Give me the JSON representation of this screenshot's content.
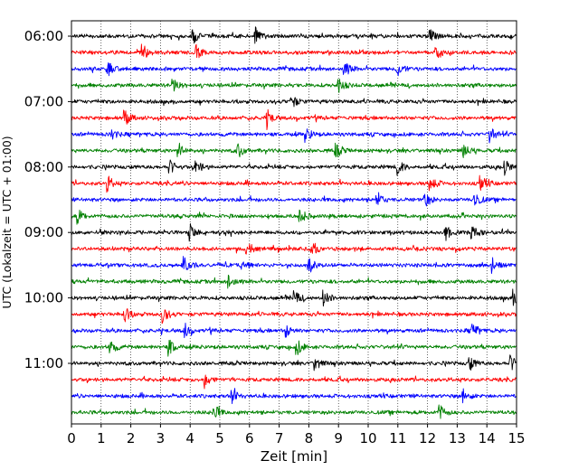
{
  "chart_data": {
    "type": "line",
    "title": "",
    "xlabel": "Zeit  [min]",
    "ylabel": "UTC (Lokalzeit = UTC + 01:00)",
    "xlim": [
      0,
      15
    ],
    "x_ticks": [
      "0",
      "1",
      "2",
      "3",
      "4",
      "5",
      "6",
      "7",
      "8",
      "9",
      "10",
      "11",
      "12",
      "13",
      "14",
      "15"
    ],
    "x_grid": "dotted",
    "y_ticks": [
      {
        "label": "06:00",
        "row": 0
      },
      {
        "label": "07:00",
        "row": 4
      },
      {
        "label": "08:00",
        "row": 8
      },
      {
        "label": "09:00",
        "row": 12
      },
      {
        "label": "10:00",
        "row": 16
      },
      {
        "label": "11:00",
        "row": 20
      }
    ],
    "trace_colors": [
      "#000000",
      "#ff0000",
      "#0000ff",
      "#008000"
    ],
    "traces": [
      {
        "start": "06:00",
        "color": "#000000",
        "events_min": [
          4.1,
          6.2,
          12.1
        ]
      },
      {
        "start": "06:15",
        "color": "#ff0000",
        "events_min": [
          2.4,
          4.2,
          12.3
        ]
      },
      {
        "start": "06:30",
        "color": "#0000ff",
        "events_min": [
          1.2,
          9.2,
          11.0
        ]
      },
      {
        "start": "06:45",
        "color": "#008000",
        "events_min": [
          3.4,
          9.0
        ]
      },
      {
        "start": "07:00",
        "color": "#000000",
        "events_min": [
          7.4
        ]
      },
      {
        "start": "07:15",
        "color": "#ff0000",
        "events_min": [
          1.8,
          6.6
        ]
      },
      {
        "start": "07:30",
        "color": "#0000ff",
        "events_min": [
          1.3,
          7.9,
          14.1
        ]
      },
      {
        "start": "07:45",
        "color": "#008000",
        "events_min": [
          3.6,
          5.6,
          8.9,
          13.2
        ]
      },
      {
        "start": "08:00",
        "color": "#000000",
        "events_min": [
          3.3,
          4.2,
          11.0,
          14.6
        ]
      },
      {
        "start": "08:15",
        "color": "#ff0000",
        "events_min": [
          1.2,
          12.1,
          13.8
        ]
      },
      {
        "start": "08:30",
        "color": "#0000ff",
        "events_min": [
          10.3,
          11.9,
          13.6
        ]
      },
      {
        "start": "08:45",
        "color": "#008000",
        "events_min": [
          0.2,
          7.7
        ]
      },
      {
        "start": "09:00",
        "color": "#000000",
        "events_min": [
          4.0,
          12.6,
          13.5
        ]
      },
      {
        "start": "09:15",
        "color": "#ff0000",
        "events_min": [
          5.9,
          8.1
        ]
      },
      {
        "start": "09:30",
        "color": "#0000ff",
        "events_min": [
          3.8,
          5.7,
          8.0,
          14.2
        ]
      },
      {
        "start": "09:45",
        "color": "#008000",
        "events_min": [
          5.3
        ]
      },
      {
        "start": "10:00",
        "color": "#000000",
        "events_min": [
          7.5,
          8.5,
          14.9
        ]
      },
      {
        "start": "10:15",
        "color": "#ff0000",
        "events_min": [
          1.8,
          3.1
        ]
      },
      {
        "start": "10:30",
        "color": "#0000ff",
        "events_min": [
          3.8,
          7.2,
          13.5
        ]
      },
      {
        "start": "10:45",
        "color": "#008000",
        "events_min": [
          1.3,
          3.3,
          7.6
        ]
      },
      {
        "start": "11:00",
        "color": "#000000",
        "events_min": [
          8.2,
          13.4,
          14.8
        ]
      },
      {
        "start": "11:15",
        "color": "#ff0000",
        "events_min": [
          4.5
        ]
      },
      {
        "start": "11:30",
        "color": "#0000ff",
        "events_min": [
          5.4,
          13.2
        ]
      },
      {
        "start": "11:45",
        "color": "#008000",
        "events_min": [
          4.8,
          12.4
        ]
      }
    ]
  }
}
